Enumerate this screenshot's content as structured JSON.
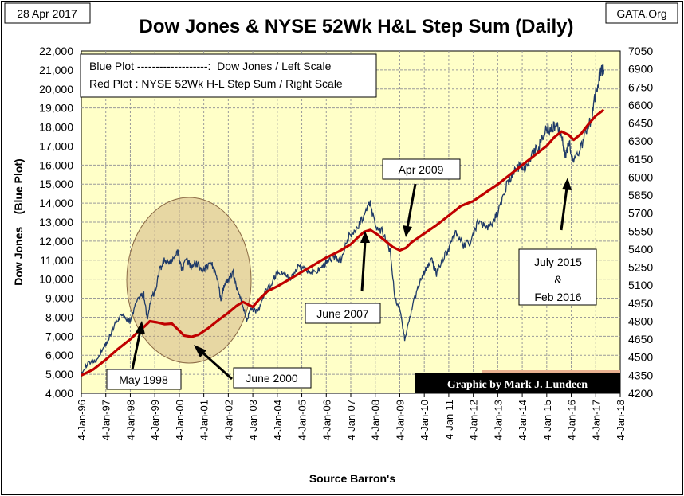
{
  "chart_data": {
    "type": "line",
    "title": "Dow Jones & NYSE 52Wk H&L Step Sum (Daily)",
    "date_stamp": "28 Apr 2017",
    "source_site": "GATA.Org",
    "xlabel": "Source Barron's",
    "ylabel": "Dow Jones    (Blue Plot)",
    "credit": "Graphic by Mark J. Lundeen",
    "legend": {
      "position": "top-left",
      "lines": [
        "Blue Plot -------------------:  Dow Jones / Left Scale",
        "Red Plot : NYSE 52Wk H-L Step Sum / Right Scale"
      ]
    },
    "x_ticks": [
      "4-Jan-96",
      "4-Jan-97",
      "4-Jan-98",
      "4-Jan-99",
      "4-Jan-00",
      "4-Jan-01",
      "4-Jan-02",
      "4-Jan-03",
      "4-Jan-04",
      "4-Jan-05",
      "4-Jan-06",
      "4-Jan-07",
      "4-Jan-08",
      "4-Jan-09",
      "4-Jan-10",
      "4-Jan-11",
      "4-Jan-12",
      "4-Jan-13",
      "4-Jan-14",
      "4-Jan-15",
      "4-Jan-16",
      "4-Jan-17",
      "4-Jan-18"
    ],
    "xlim": [
      1996.0,
      2018.0
    ],
    "left_axis": {
      "ylim": [
        4000,
        22000
      ],
      "ticks": [
        "4,000",
        "5,000",
        "6,000",
        "7,000",
        "8,000",
        "9,000",
        "10,000",
        "11,000",
        "12,000",
        "13,000",
        "14,000",
        "15,000",
        "16,000",
        "17,000",
        "18,000",
        "19,000",
        "20,000",
        "21,000",
        "22,000"
      ]
    },
    "right_axis": {
      "ylim": [
        4200,
        7050
      ],
      "ticks": [
        "4200",
        "4350",
        "4500",
        "4650",
        "4800",
        "4950",
        "5100",
        "5250",
        "5400",
        "5550",
        "5700",
        "5850",
        "6000",
        "6150",
        "6300",
        "6450",
        "6600",
        "6750",
        "6900",
        "7050"
      ]
    },
    "series": [
      {
        "name": "Dow Jones",
        "axis": "left",
        "color": "#1f3a68",
        "x": [
          1996.0,
          1996.3,
          1996.6,
          1996.9,
          1997.1,
          1997.35,
          1997.6,
          1997.85,
          1998.0,
          1998.3,
          1998.55,
          1998.7,
          1998.85,
          1999.0,
          1999.2,
          1999.4,
          1999.6,
          1999.8,
          1999.95,
          2000.1,
          2000.3,
          2000.5,
          2000.7,
          2000.9,
          2001.1,
          2001.3,
          2001.5,
          2001.7,
          2001.8,
          2002.0,
          2002.2,
          2002.4,
          2002.6,
          2002.75,
          2002.9,
          2003.1,
          2003.3,
          2003.5,
          2003.75,
          2004.0,
          2004.3,
          2004.6,
          2004.9,
          2005.2,
          2005.5,
          2005.8,
          2006.0,
          2006.3,
          2006.6,
          2006.9,
          2007.2,
          2007.5,
          2007.8,
          2008.0,
          2008.3,
          2008.6,
          2008.8,
          2009.0,
          2009.2,
          2009.5,
          2009.8,
          2010.0,
          2010.3,
          2010.5,
          2010.8,
          2011.0,
          2011.3,
          2011.6,
          2011.9,
          2012.2,
          2012.5,
          2012.8,
          2013.0,
          2013.3,
          2013.6,
          2013.9,
          2014.1,
          2014.4,
          2014.7,
          2014.9,
          2015.2,
          2015.4,
          2015.6,
          2015.75,
          2015.9,
          2016.1,
          2016.3,
          2016.6,
          2016.85,
          2017.0,
          2017.2,
          2017.33
        ],
        "values": [
          5100,
          5600,
          5700,
          6400,
          6800,
          7600,
          8100,
          7900,
          7800,
          9000,
          9200,
          7800,
          9000,
          9300,
          10500,
          11000,
          10800,
          11200,
          11400,
          10500,
          11000,
          10600,
          10900,
          10500,
          10600,
          10900,
          10200,
          9000,
          9500,
          10000,
          10300,
          9300,
          8600,
          7800,
          8500,
          8300,
          8500,
          9300,
          9700,
          10400,
          10200,
          10100,
          10700,
          10500,
          10400,
          10500,
          10900,
          11200,
          11000,
          12200,
          12500,
          13300,
          14000,
          12800,
          12500,
          11500,
          9000,
          8500,
          6800,
          8500,
          9800,
          10400,
          11000,
          10300,
          11200,
          11600,
          12500,
          11700,
          12000,
          13000,
          12700,
          13000,
          13500,
          14800,
          15500,
          16000,
          15800,
          16600,
          17000,
          17800,
          18000,
          18100,
          17700,
          16500,
          17200,
          16200,
          16500,
          17800,
          18500,
          19800,
          20900,
          21000
        ]
      },
      {
        "name": "NYSE 52Wk H-L Step Sum",
        "axis": "right",
        "color": "#c00000",
        "x": [
          1996.0,
          1996.5,
          1997.0,
          1997.5,
          1998.0,
          1998.3,
          1998.6,
          1998.8,
          1999.1,
          1999.4,
          1999.7,
          2000.0,
          2000.2,
          2000.5,
          2000.8,
          2001.2,
          2001.6,
          2002.0,
          2002.35,
          2002.6,
          2003.0,
          2003.3,
          2003.6,
          2004.0,
          2004.5,
          2005.0,
          2005.5,
          2006.0,
          2006.5,
          2007.0,
          2007.3,
          2007.55,
          2007.8,
          2008.1,
          2008.4,
          2008.7,
          2009.0,
          2009.25,
          2009.5,
          2010.0,
          2010.5,
          2011.0,
          2011.5,
          2012.0,
          2012.5,
          2013.0,
          2013.5,
          2014.0,
          2014.5,
          2015.0,
          2015.3,
          2015.6,
          2015.9,
          2016.1,
          2016.4,
          2016.7,
          2017.0,
          2017.33
        ],
        "values": [
          4350,
          4400,
          4480,
          4570,
          4650,
          4710,
          4760,
          4800,
          4790,
          4775,
          4780,
          4720,
          4680,
          4670,
          4690,
          4745,
          4810,
          4870,
          4930,
          4960,
          4920,
          4990,
          5050,
          5090,
          5150,
          5210,
          5270,
          5330,
          5380,
          5440,
          5500,
          5545,
          5560,
          5520,
          5470,
          5420,
          5390,
          5410,
          5460,
          5530,
          5600,
          5680,
          5760,
          5800,
          5870,
          5940,
          6020,
          6100,
          6180,
          6260,
          6330,
          6380,
          6350,
          6310,
          6360,
          6440,
          6510,
          6560
        ]
      }
    ],
    "annotations": [
      {
        "text": "May 1998"
      },
      {
        "text": "June 2000"
      },
      {
        "text": "June 2007"
      },
      {
        "text": "Apr 2009"
      },
      {
        "text": "July 2015\n&\nFeb 2016"
      }
    ]
  }
}
